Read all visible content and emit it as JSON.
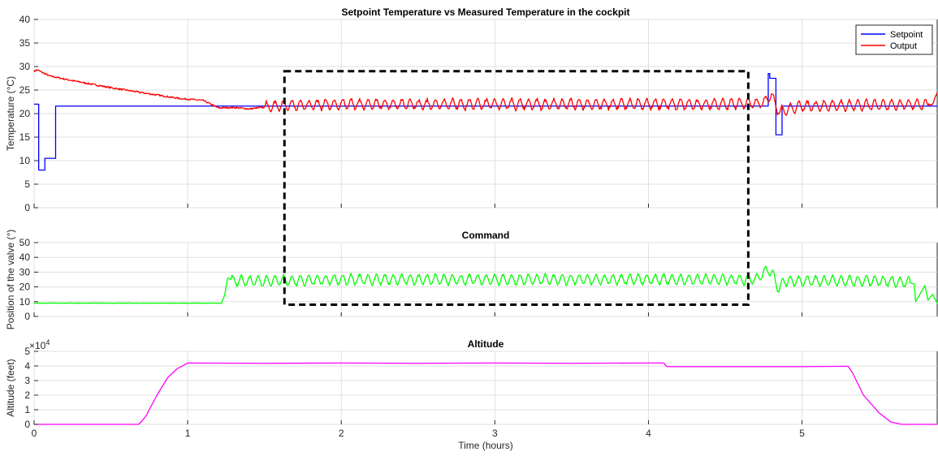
{
  "colors": {
    "setpoint": "#0000ff",
    "output": "#ff0000",
    "command": "#00ff00",
    "altitude": "#ff00ff",
    "highlight": "#000000"
  },
  "chart_data": [
    {
      "type": "line",
      "title": "Setpoint Temperature vs Measured Temperature in the cockpit",
      "xlabel": "",
      "ylabel": "Temperature (°C)",
      "xlim": [
        0,
        5.88
      ],
      "ylim": [
        0,
        40
      ],
      "xticks": [
        0,
        1,
        2,
        3,
        4,
        5
      ],
      "xticklabels": [
        "",
        "",
        "",
        "",
        "",
        ""
      ],
      "yticks": [
        0,
        5,
        10,
        15,
        20,
        25,
        30,
        35,
        40
      ],
      "grid": true,
      "legend": {
        "position": "top-right",
        "entries": [
          "Setpoint",
          "Output"
        ]
      },
      "series": [
        {
          "name": "Setpoint",
          "color": "#0000ff",
          "step": true,
          "x": [
            0,
            0.03,
            0.07,
            0.14,
            0.22,
            4.75,
            4.78,
            4.79,
            4.83,
            4.87,
            5.88
          ],
          "y": [
            22,
            8,
            10.5,
            21.6,
            21.6,
            21.6,
            28.5,
            27.5,
            15.5,
            21.6,
            21.6
          ]
        },
        {
          "name": "Output",
          "color": "#ff0000",
          "x": [
            0,
            0.02,
            0.1,
            0.25,
            0.5,
            0.75,
            0.95,
            1.1,
            1.2,
            1.3,
            1.4,
            1.6,
            2.0,
            2.5,
            3.0,
            3.5,
            4.0,
            4.5,
            4.75,
            4.8,
            4.85,
            4.9,
            5.0,
            5.5,
            5.85,
            5.88
          ],
          "y": [
            29,
            29.3,
            28,
            27,
            25.5,
            24.2,
            23.2,
            22.8,
            21.2,
            21.3,
            21.0,
            21.7,
            22.0,
            22.0,
            22.0,
            22.0,
            22.0,
            22.0,
            22.3,
            24.0,
            20.3,
            20.8,
            21.6,
            21.8,
            22.0,
            24.5
          ],
          "oscillation": {
            "from": 1.5,
            "to": 5.82,
            "amplitude": 1.1,
            "period": 0.055
          }
        }
      ],
      "annotations": [
        {
          "type": "dashed-rectangle",
          "x": [
            1.63,
            4.65
          ],
          "y": [
            -100,
            29
          ]
        }
      ]
    },
    {
      "type": "line",
      "title": "Command",
      "xlabel": "",
      "ylabel": "Position of the valve (°)",
      "xlim": [
        0,
        5.88
      ],
      "ylim": [
        0,
        50
      ],
      "xticks": [
        0,
        1,
        2,
        3,
        4,
        5
      ],
      "yticks": [
        0,
        10,
        20,
        30,
        40,
        50
      ],
      "grid": true,
      "series": [
        {
          "name": "",
          "color": "#00ff00",
          "x": [
            0,
            1.22,
            1.24,
            1.26,
            1.3,
            1.5,
            2.0,
            3.0,
            4.0,
            4.7,
            4.78,
            4.81,
            4.85,
            4.88,
            5.0,
            5.5,
            5.7,
            5.73,
            5.74,
            5.8,
            5.82,
            5.85,
            5.88
          ],
          "y": [
            9,
            9,
            14,
            26,
            24,
            24,
            25,
            25,
            25,
            25,
            32,
            28,
            18,
            24,
            24,
            24,
            23,
            22,
            10,
            21,
            11,
            15,
            9
          ],
          "oscillation": {
            "from": 1.28,
            "to": 5.7,
            "amplitude": 3.5,
            "period": 0.055
          }
        }
      ],
      "annotations": [
        {
          "type": "dashed-rectangle",
          "x": [
            1.63,
            4.65
          ],
          "y": [
            8,
            200
          ]
        }
      ]
    },
    {
      "type": "line",
      "title": "Altitude",
      "xlabel": "Time (hours)",
      "ylabel": "Altitude (feet)",
      "xlim": [
        0,
        5.88
      ],
      "ylim": [
        0,
        50000
      ],
      "xticks": [
        0,
        1,
        2,
        3,
        4,
        5
      ],
      "xticklabels": [
        "0",
        "1",
        "2",
        "3",
        "4",
        "5"
      ],
      "yticks": [
        0,
        10000,
        20000,
        30000,
        40000,
        50000
      ],
      "yticklabels": [
        "0",
        "1",
        "2",
        "3",
        "4",
        "5"
      ],
      "yexponent": {
        "base": "×10",
        "power": "4"
      },
      "grid": true,
      "series": [
        {
          "name": "",
          "color": "#ff00ff",
          "x": [
            0,
            0.68,
            0.7,
            0.73,
            0.8,
            0.87,
            0.93,
            1.0,
            1.5,
            2.0,
            2.5,
            3.0,
            3.5,
            4.0,
            4.1,
            4.12,
            4.5,
            5.0,
            5.3,
            5.33,
            5.4,
            5.5,
            5.58,
            5.65,
            5.88
          ],
          "y": [
            0,
            0,
            2000,
            6000,
            20000,
            32000,
            38000,
            42000,
            41800,
            42000,
            41800,
            42000,
            41800,
            42000,
            42000,
            39500,
            39500,
            39500,
            39800,
            35000,
            20000,
            8000,
            1500,
            0,
            0
          ]
        }
      ]
    }
  ]
}
